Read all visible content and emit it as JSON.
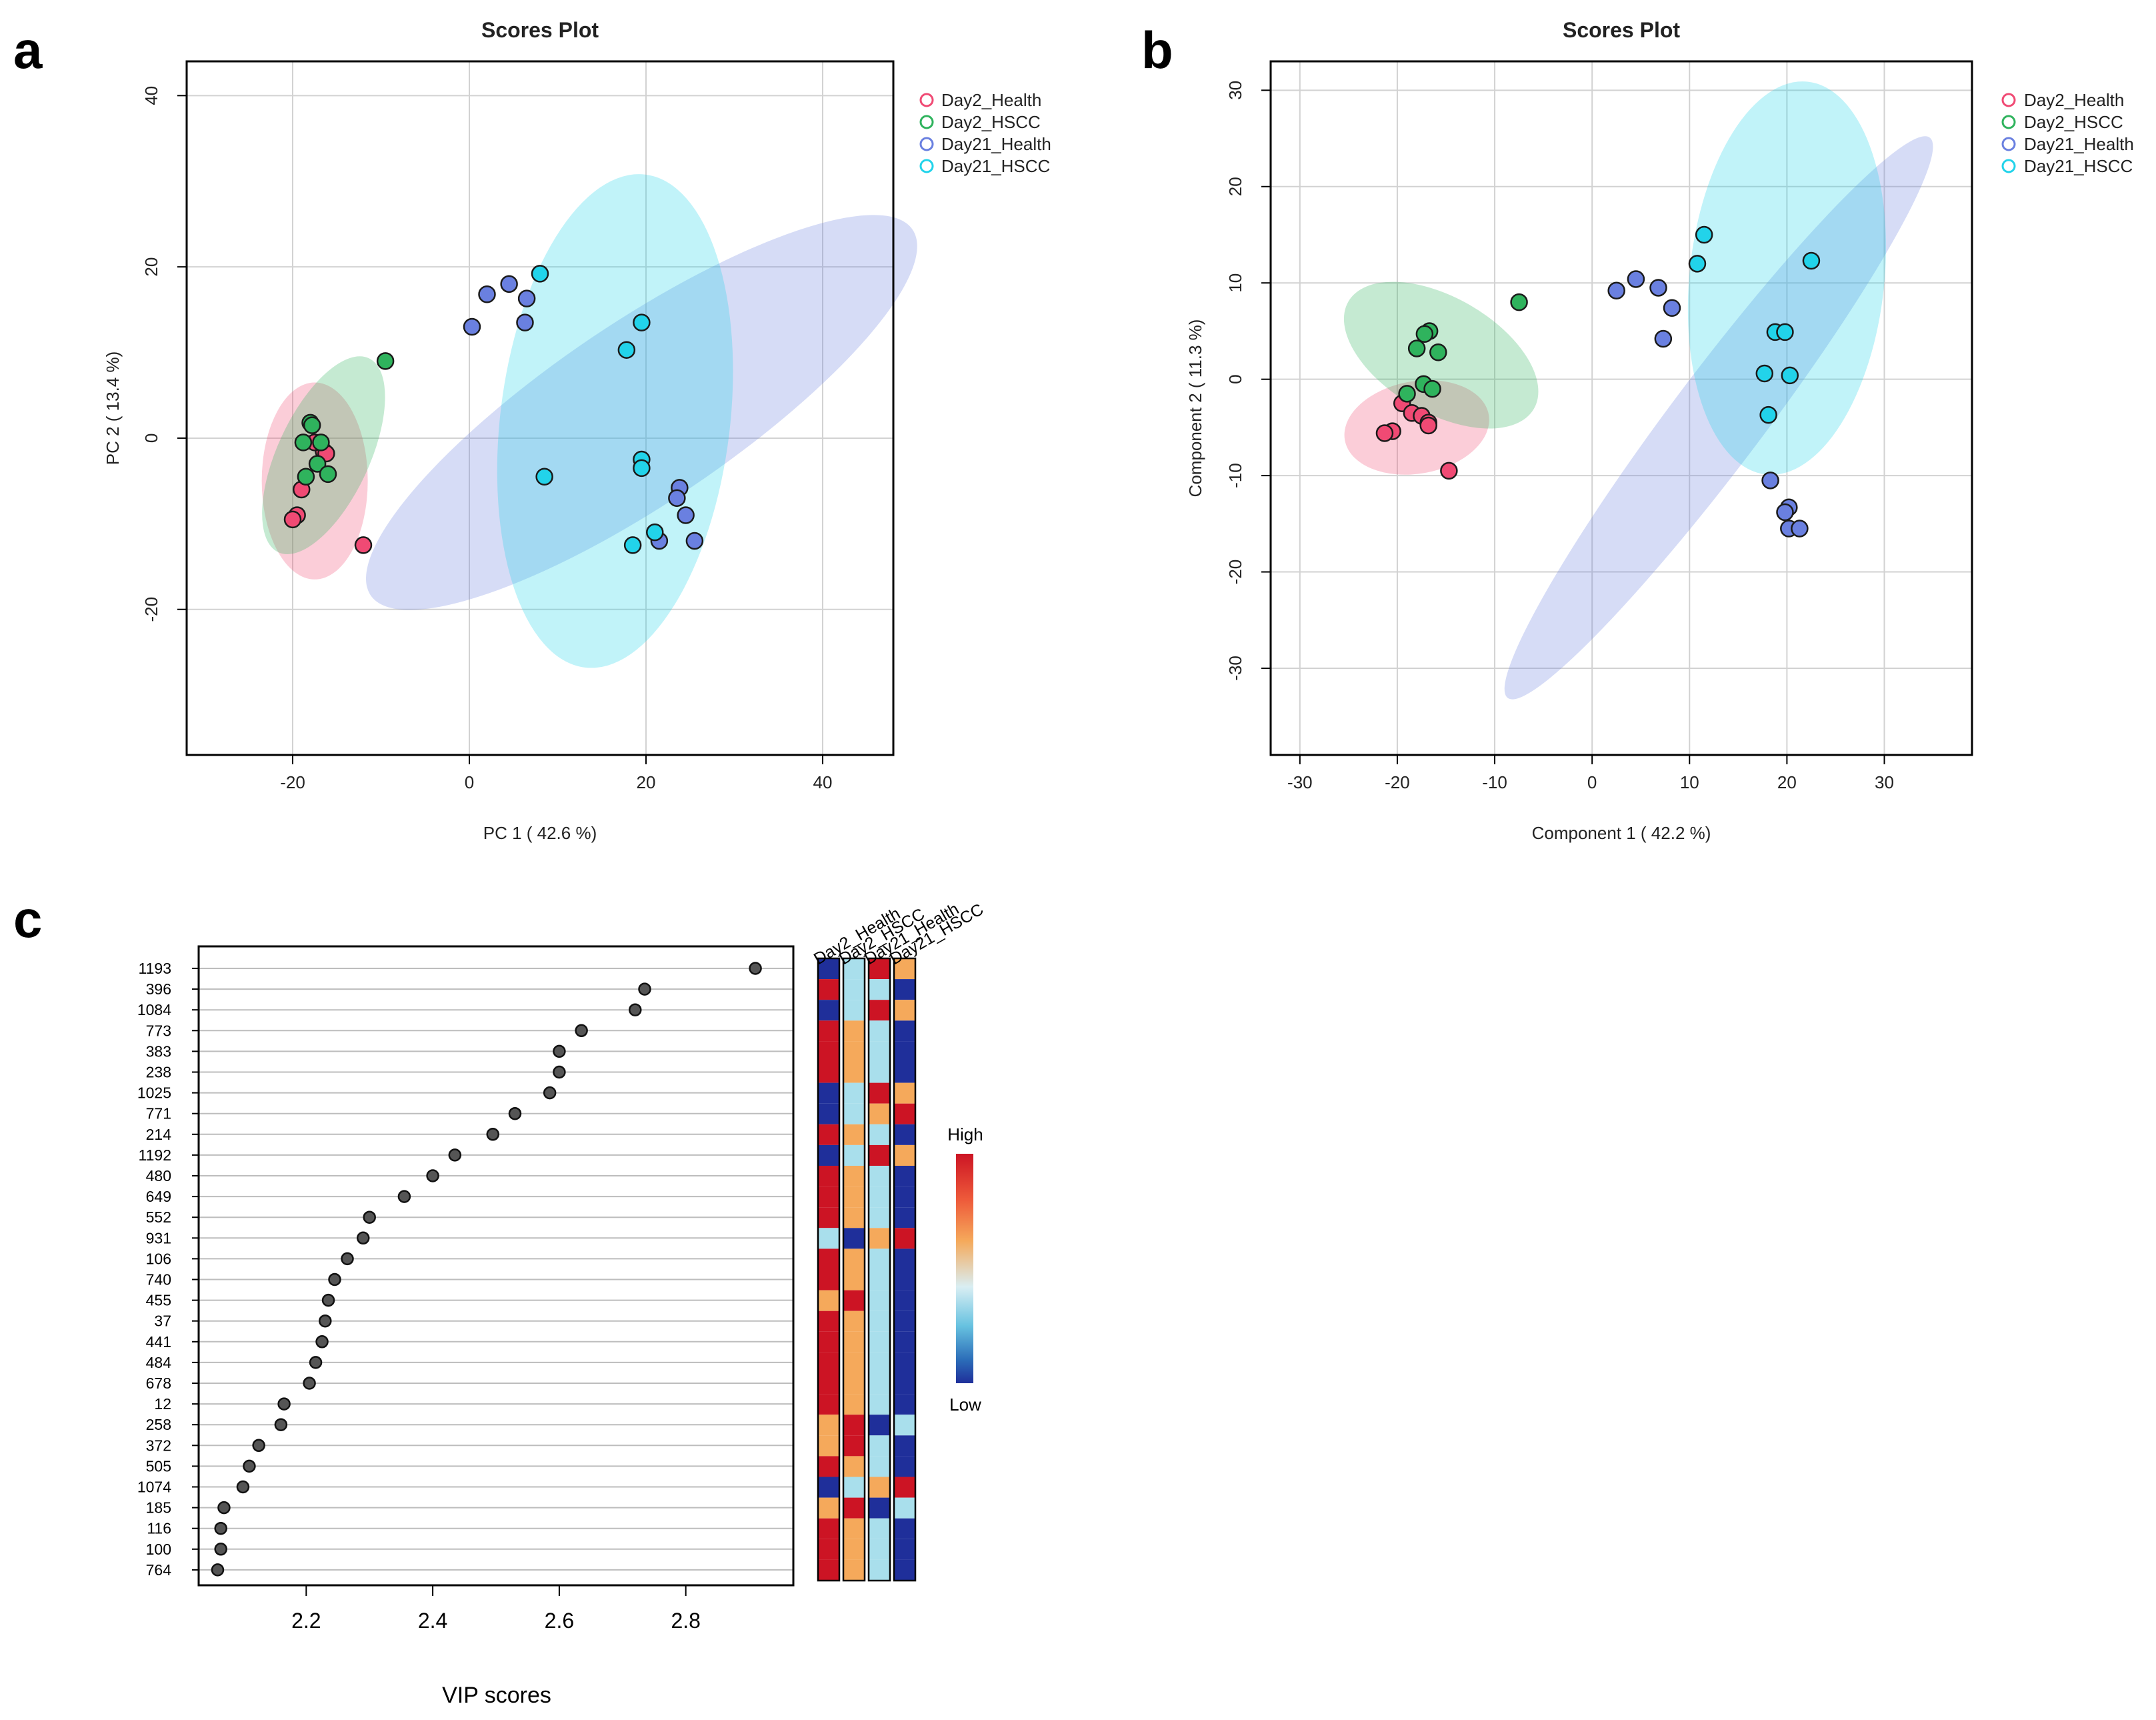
{
  "panel_letters": {
    "a": "a",
    "b": "b",
    "c": "c"
  },
  "colors": {
    "Day2_Health": "#f04a74",
    "Day2_HSCC": "#2fb35d",
    "Day21_Health": "#6a80e0",
    "Day21_HSCC": "#22d3ea"
  },
  "chart_data": [
    {
      "id": "a",
      "type": "scatter",
      "title": "Scores Plot",
      "xlabel": "PC 1 ( 42.6 %)",
      "ylabel": "PC 2 ( 13.4 %)",
      "xlim": [
        -32,
        48
      ],
      "ylim": [
        -37,
        44
      ],
      "xticks": [
        -20,
        0,
        20,
        40
      ],
      "yticks": [
        -20,
        0,
        20,
        40
      ],
      "legend": [
        "Day2_Health",
        "Day2_HSCC",
        "Day21_Health",
        "Day21_HSCC"
      ],
      "legend_position": "top-right",
      "ellipses": [
        {
          "group": "Day21_Health",
          "cx": 19.5,
          "cy": 3,
          "rx": 37,
          "ry": 10.5,
          "angle": -34
        },
        {
          "group": "Day21_HSCC",
          "cx": 16.5,
          "cy": 2,
          "rx": 13,
          "ry": 29,
          "angle": 7
        },
        {
          "group": "Day2_Health",
          "cx": -17.5,
          "cy": -5,
          "rx": 6,
          "ry": 11.5,
          "angle": 0
        },
        {
          "group": "Day2_HSCC",
          "cx": -16.5,
          "cy": -2,
          "rx": 5.2,
          "ry": 12.5,
          "angle": 25
        }
      ],
      "series": [
        {
          "name": "Day2_Health",
          "points": [
            [
              -16.5,
              -1.5
            ],
            [
              -16.2,
              -1.8
            ],
            [
              -17.5,
              -0.5
            ],
            [
              -19,
              -6
            ],
            [
              -19.5,
              -9
            ],
            [
              -20,
              -9.5
            ],
            [
              -12,
              -12.5
            ]
          ]
        },
        {
          "name": "Day2_HSCC",
          "points": [
            [
              -9.5,
              9
            ],
            [
              -18,
              1.8
            ],
            [
              -17.8,
              1.5
            ],
            [
              -18.8,
              -0.5
            ],
            [
              -16.8,
              -0.5
            ],
            [
              -17.2,
              -3
            ],
            [
              -16,
              -4.2
            ],
            [
              -18.5,
              -4.5
            ]
          ]
        },
        {
          "name": "Day21_Health",
          "points": [
            [
              2,
              16.8
            ],
            [
              4.5,
              18
            ],
            [
              6.5,
              16.3
            ],
            [
              6.3,
              13.5
            ],
            [
              0.3,
              13
            ],
            [
              23.8,
              -5.8
            ],
            [
              23.5,
              -7
            ],
            [
              24.5,
              -9
            ],
            [
              21.5,
              -12
            ],
            [
              25.5,
              -12
            ]
          ]
        },
        {
          "name": "Day21_HSCC",
          "points": [
            [
              8,
              19.2
            ],
            [
              19.5,
              13.5
            ],
            [
              17.8,
              10.3
            ],
            [
              8.5,
              -4.5
            ],
            [
              19.5,
              -2.5
            ],
            [
              19.5,
              -3.5
            ],
            [
              21,
              -11
            ],
            [
              18.5,
              -12.5
            ]
          ]
        }
      ]
    },
    {
      "id": "b",
      "type": "scatter",
      "title": "Scores Plot",
      "xlabel": "Component 1 ( 42.2 %)",
      "ylabel": "Component 2 ( 11.3 %)",
      "xlim": [
        -33,
        39
      ],
      "ylim": [
        -39,
        33
      ],
      "xticks": [
        -30,
        -20,
        -10,
        0,
        10,
        20,
        30
      ],
      "yticks": [
        -30,
        -20,
        -10,
        0,
        10,
        20,
        30
      ],
      "legend": [
        "Day2_Health",
        "Day2_HSCC",
        "Day21_Health",
        "Day21_HSCC"
      ],
      "legend_position": "top-right",
      "ellipses": [
        {
          "group": "Day21_Health",
          "cx": 13,
          "cy": -4,
          "rx": 36,
          "ry": 4.8,
          "angle": -53
        },
        {
          "group": "Day21_HSCC",
          "cx": 20,
          "cy": 10.5,
          "rx": 10,
          "ry": 20.5,
          "angle": 6
        },
        {
          "group": "Day2_Health",
          "cx": -18,
          "cy": -5,
          "rx": 7.5,
          "ry": 4.8,
          "angle": -10
        },
        {
          "group": "Day2_HSCC",
          "cx": -15.5,
          "cy": 2.5,
          "rx": 11,
          "ry": 6,
          "angle": 30
        }
      ],
      "series": [
        {
          "name": "Day2_Health",
          "points": [
            [
              -19.5,
              -2.5
            ],
            [
              -18.5,
              -3.5
            ],
            [
              -17.5,
              -3.8
            ],
            [
              -16.8,
              -4.5
            ],
            [
              -16.8,
              -4.8
            ],
            [
              -20.5,
              -5.4
            ],
            [
              -21.3,
              -5.6
            ],
            [
              -14.7,
              -9.5
            ]
          ]
        },
        {
          "name": "Day2_HSCC",
          "points": [
            [
              -7.5,
              8
            ],
            [
              -16.7,
              5
            ],
            [
              -17.2,
              4.7
            ],
            [
              -18,
              3.2
            ],
            [
              -15.8,
              2.8
            ],
            [
              -17.3,
              -0.5
            ],
            [
              -16.4,
              -1
            ],
            [
              -19,
              -1.5
            ]
          ]
        },
        {
          "name": "Day21_Health",
          "points": [
            [
              2.5,
              9.2
            ],
            [
              4.5,
              10.4
            ],
            [
              6.8,
              9.5
            ],
            [
              8.2,
              7.4
            ],
            [
              7.3,
              4.2
            ],
            [
              18.3,
              -10.5
            ],
            [
              20.2,
              -13.3
            ],
            [
              19.8,
              -13.8
            ],
            [
              20.2,
              -15.5
            ],
            [
              21.3,
              -15.5
            ]
          ]
        },
        {
          "name": "Day21_HSCC",
          "points": [
            [
              11.5,
              15
            ],
            [
              10.8,
              12
            ],
            [
              22.5,
              12.3
            ],
            [
              18.8,
              4.9
            ],
            [
              19.8,
              4.9
            ],
            [
              17.7,
              0.6
            ],
            [
              20.3,
              0.4
            ],
            [
              18.1,
              -3.7
            ]
          ]
        }
      ]
    },
    {
      "id": "c",
      "type": "dot",
      "xlabel": "VIP scores",
      "xlim": [
        2.03,
        2.97
      ],
      "xticks": [
        2.2,
        2.4,
        2.6,
        2.8
      ],
      "features": [
        "1193",
        "396",
        "1084",
        "773",
        "383",
        "238",
        "1025",
        "771",
        "214",
        "1192",
        "480",
        "649",
        "552",
        "931",
        "106",
        "740",
        "455",
        "37",
        "441",
        "484",
        "678",
        "12",
        "258",
        "372",
        "505",
        "1074",
        "185",
        "116",
        "100",
        "764"
      ],
      "values": [
        2.91,
        2.735,
        2.72,
        2.635,
        2.6,
        2.6,
        2.585,
        2.53,
        2.495,
        2.435,
        2.4,
        2.355,
        2.3,
        2.29,
        2.265,
        2.245,
        2.235,
        2.23,
        2.225,
        2.215,
        2.205,
        2.165,
        2.16,
        2.125,
        2.11,
        2.1,
        2.07,
        2.065,
        2.065,
        2.06
      ],
      "heatmap_columns": [
        "Day2_Health",
        "Day2_HSCC",
        "Day21_Health",
        "Day21_HSCC"
      ],
      "heatmap_levels": [
        [
          0,
          1,
          3,
          2
        ],
        [
          3,
          1,
          1,
          0
        ],
        [
          0,
          1,
          3,
          2
        ],
        [
          3,
          2,
          1,
          0
        ],
        [
          3,
          2,
          1,
          0
        ],
        [
          3,
          2,
          1,
          0
        ],
        [
          0,
          1,
          3,
          2
        ],
        [
          0,
          1,
          2,
          3
        ],
        [
          3,
          2,
          1,
          0
        ],
        [
          0,
          1,
          3,
          2
        ],
        [
          3,
          2,
          1,
          0
        ],
        [
          3,
          2,
          1,
          0
        ],
        [
          3,
          2,
          1,
          0
        ],
        [
          1,
          0,
          2,
          3
        ],
        [
          3,
          2,
          1,
          0
        ],
        [
          3,
          2,
          1,
          0
        ],
        [
          2,
          3,
          1,
          0
        ],
        [
          3,
          2,
          1,
          0
        ],
        [
          3,
          2,
          1,
          0
        ],
        [
          3,
          2,
          1,
          0
        ],
        [
          3,
          2,
          1,
          0
        ],
        [
          3,
          2,
          1,
          0
        ],
        [
          2,
          3,
          0,
          1
        ],
        [
          2,
          3,
          1,
          0
        ],
        [
          3,
          2,
          1,
          0
        ],
        [
          0,
          1,
          2,
          3
        ],
        [
          2,
          3,
          0,
          1
        ],
        [
          3,
          2,
          1,
          0
        ],
        [
          3,
          2,
          1,
          0
        ],
        [
          3,
          2,
          1,
          0
        ]
      ],
      "heatmap_palette": [
        "#1f2f9a",
        "#a9dfec",
        "#f5a95b",
        "#cc1424"
      ],
      "colorbar": {
        "high": "High",
        "low": "Low"
      }
    }
  ]
}
